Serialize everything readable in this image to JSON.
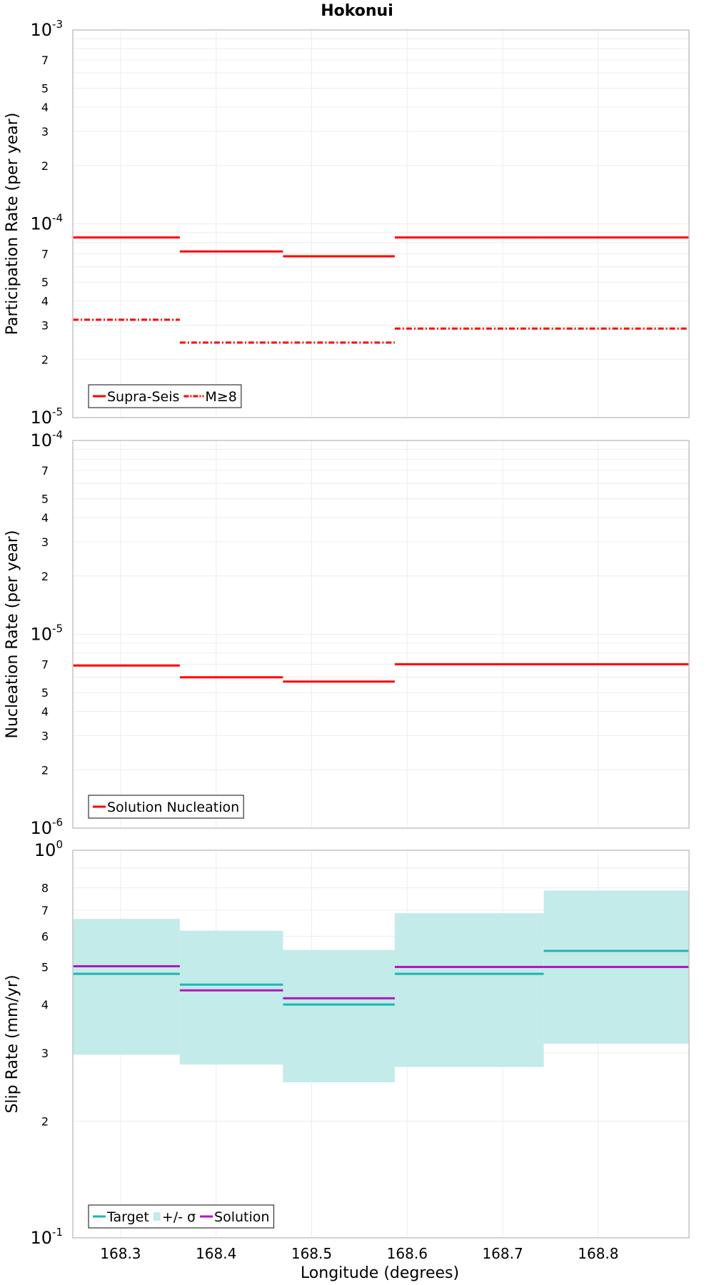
{
  "title": "Hokonui",
  "xlabel": "Longitude (degrees)",
  "x_ticks": [
    "168.3",
    "168.4",
    "168.5",
    "168.6",
    "168.7",
    "168.8"
  ],
  "colors": {
    "red": "#ff0000",
    "teal": "#1fb5b0",
    "purple": "#b414c8",
    "band": "#c2ebea",
    "grid": "#ececec",
    "frame": "#c4c4c4"
  },
  "chart_data": [
    {
      "type": "line",
      "ylabel": "Participation Rate (per year)",
      "yscale": "log",
      "ylim": [
        1e-05,
        0.001
      ],
      "xlim": [
        168.25,
        168.895
      ],
      "y_tick_labels": [
        {
          "v": 1e-05,
          "base": "10",
          "exp": "-5",
          "major": true
        },
        {
          "v": 2e-05,
          "text": "2"
        },
        {
          "v": 3e-05,
          "text": "3"
        },
        {
          "v": 4e-05,
          "text": "4"
        },
        {
          "v": 5e-05,
          "text": "5"
        },
        {
          "v": 7e-05,
          "text": "7"
        },
        {
          "v": 0.0001,
          "base": "10",
          "exp": "-4",
          "major": true
        },
        {
          "v": 0.0002,
          "text": "2"
        },
        {
          "v": 0.0003,
          "text": "3"
        },
        {
          "v": 0.0004,
          "text": "4"
        },
        {
          "v": 0.0005,
          "text": "5"
        },
        {
          "v": 0.0007,
          "text": "7"
        },
        {
          "v": 0.001,
          "base": "10",
          "exp": "-3",
          "major": true
        }
      ],
      "legend": {
        "position": "bottom-left",
        "entries": [
          {
            "label": "Supra-Seis",
            "style": "solid",
            "color": "#ff0000"
          },
          {
            "label": "M≥8",
            "style": "dashdot",
            "color": "#ff0000"
          }
        ]
      },
      "series": [
        {
          "name": "Supra-Seis",
          "style": "solid",
          "color": "#ff0000",
          "segments": [
            {
              "x0": 168.25,
              "x1": 168.362,
              "y": 8.5e-05
            },
            {
              "x0": 168.362,
              "x1": 168.47,
              "y": 7.2e-05
            },
            {
              "x0": 168.47,
              "x1": 168.587,
              "y": 6.8e-05
            },
            {
              "x0": 168.587,
              "x1": 168.743,
              "y": 8.5e-05
            },
            {
              "x0": 168.743,
              "x1": 168.895,
              "y": 8.5e-05
            }
          ]
        },
        {
          "name": "M≥8",
          "style": "dashdot",
          "color": "#ff0000",
          "segments": [
            {
              "x0": 168.25,
              "x1": 168.362,
              "y": 3.2e-05
            },
            {
              "x0": 168.362,
              "x1": 168.47,
              "y": 2.44e-05
            },
            {
              "x0": 168.47,
              "x1": 168.587,
              "y": 2.44e-05
            },
            {
              "x0": 168.587,
              "x1": 168.743,
              "y": 2.88e-05
            },
            {
              "x0": 168.743,
              "x1": 168.895,
              "y": 2.88e-05
            }
          ]
        }
      ]
    },
    {
      "type": "line",
      "ylabel": "Nucleation Rate (per year)",
      "yscale": "log",
      "ylim": [
        1e-06,
        0.0001
      ],
      "xlim": [
        168.25,
        168.895
      ],
      "y_tick_labels": [
        {
          "v": 1e-06,
          "base": "10",
          "exp": "-6",
          "major": true
        },
        {
          "v": 2e-06,
          "text": "2"
        },
        {
          "v": 3e-06,
          "text": "3"
        },
        {
          "v": 4e-06,
          "text": "4"
        },
        {
          "v": 5e-06,
          "text": "5"
        },
        {
          "v": 7e-06,
          "text": "7"
        },
        {
          "v": 1e-05,
          "base": "10",
          "exp": "-5",
          "major": true
        },
        {
          "v": 2e-05,
          "text": "2"
        },
        {
          "v": 3e-05,
          "text": "3"
        },
        {
          "v": 4e-05,
          "text": "4"
        },
        {
          "v": 5e-05,
          "text": "5"
        },
        {
          "v": 7e-05,
          "text": "7"
        },
        {
          "v": 0.0001,
          "base": "10",
          "exp": "-4",
          "major": true
        }
      ],
      "legend": {
        "position": "bottom-left",
        "entries": [
          {
            "label": "Solution Nucleation",
            "style": "solid",
            "color": "#ff0000"
          }
        ]
      },
      "series": [
        {
          "name": "Solution Nucleation",
          "style": "solid",
          "color": "#ff0000",
          "segments": [
            {
              "x0": 168.25,
              "x1": 168.362,
              "y": 6.9e-06
            },
            {
              "x0": 168.362,
              "x1": 168.47,
              "y": 6e-06
            },
            {
              "x0": 168.47,
              "x1": 168.587,
              "y": 5.7e-06
            },
            {
              "x0": 168.587,
              "x1": 168.743,
              "y": 7e-06
            },
            {
              "x0": 168.743,
              "x1": 168.895,
              "y": 7e-06
            }
          ]
        }
      ]
    },
    {
      "type": "line",
      "ylabel": "Slip Rate (mm/yr)",
      "yscale": "log",
      "ylim": [
        0.1,
        1
      ],
      "xlim": [
        168.25,
        168.895
      ],
      "y_tick_labels": [
        {
          "v": 0.1,
          "base": "10",
          "exp": "-1",
          "major": true
        },
        {
          "v": 0.2,
          "text": "2"
        },
        {
          "v": 0.3,
          "text": "3"
        },
        {
          "v": 0.4,
          "text": "4"
        },
        {
          "v": 0.5,
          "text": "5"
        },
        {
          "v": 0.6,
          "text": "6"
        },
        {
          "v": 0.7,
          "text": "7"
        },
        {
          "v": 0.8,
          "text": "8"
        },
        {
          "v": 1,
          "base": "10",
          "exp": "0",
          "major": true
        }
      ],
      "legend": {
        "position": "bottom-left",
        "entries": [
          {
            "label": "Target",
            "style": "solid",
            "color": "#1fb5b0"
          },
          {
            "label": "+/- σ",
            "style": "band",
            "color": "#c2ebea"
          },
          {
            "label": "Solution",
            "style": "solid",
            "color": "#b414c8"
          }
        ]
      },
      "band": {
        "name": "+/- σ",
        "color": "#c2ebea",
        "segments": [
          {
            "x0": 168.25,
            "x1": 168.362,
            "low": 0.297,
            "high": 0.665
          },
          {
            "x0": 168.362,
            "x1": 168.47,
            "low": 0.28,
            "high": 0.62
          },
          {
            "x0": 168.47,
            "x1": 168.587,
            "low": 0.252,
            "high": 0.553
          },
          {
            "x0": 168.587,
            "x1": 168.743,
            "low": 0.276,
            "high": 0.688
          },
          {
            "x0": 168.743,
            "x1": 168.895,
            "low": 0.317,
            "high": 0.787
          }
        ]
      },
      "series": [
        {
          "name": "Target",
          "style": "solid",
          "color": "#1fb5b0",
          "segments": [
            {
              "x0": 168.25,
              "x1": 168.362,
              "y": 0.48
            },
            {
              "x0": 168.362,
              "x1": 168.47,
              "y": 0.45
            },
            {
              "x0": 168.47,
              "x1": 168.587,
              "y": 0.4
            },
            {
              "x0": 168.587,
              "x1": 168.743,
              "y": 0.48
            },
            {
              "x0": 168.743,
              "x1": 168.895,
              "y": 0.55
            }
          ]
        },
        {
          "name": "Solution",
          "style": "solid",
          "color": "#b414c8",
          "segments": [
            {
              "x0": 168.25,
              "x1": 168.362,
              "y": 0.502
            },
            {
              "x0": 168.362,
              "x1": 168.47,
              "y": 0.435
            },
            {
              "x0": 168.47,
              "x1": 168.587,
              "y": 0.415
            },
            {
              "x0": 168.587,
              "x1": 168.743,
              "y": 0.5
            },
            {
              "x0": 168.743,
              "x1": 168.895,
              "y": 0.5
            }
          ]
        }
      ]
    }
  ]
}
